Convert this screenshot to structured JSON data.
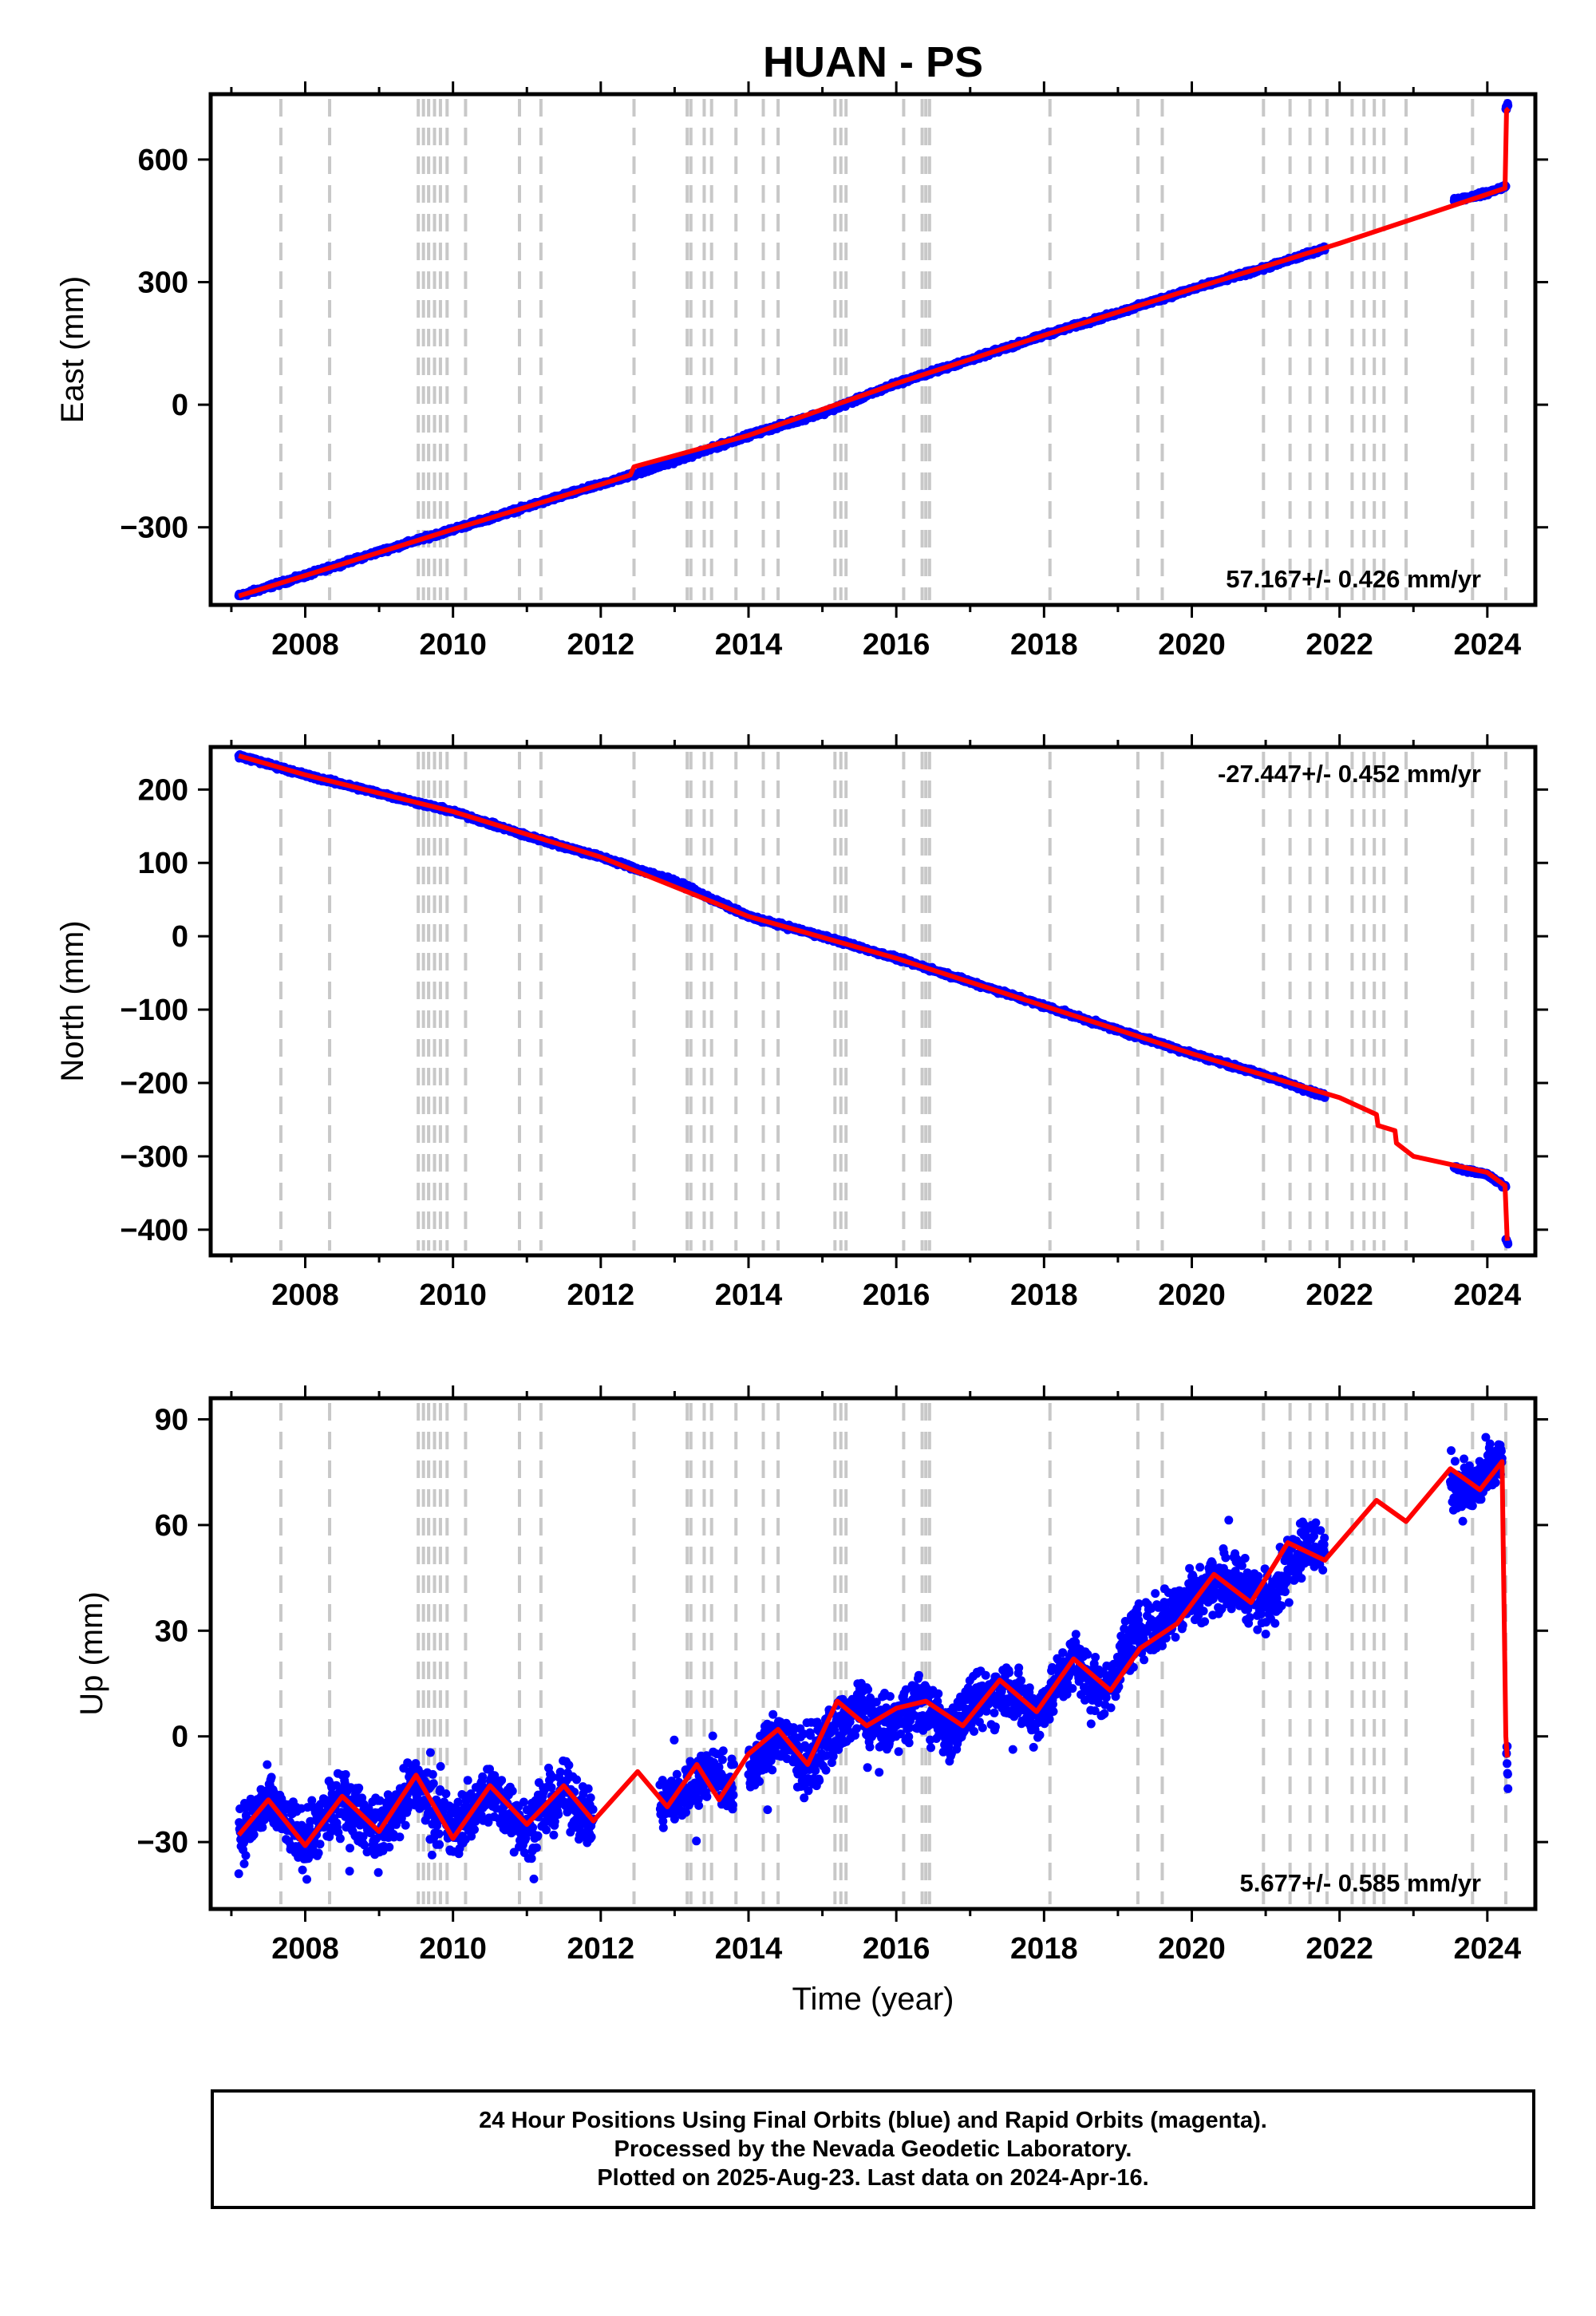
{
  "chart_data": [
    {
      "type": "scatter",
      "title": "HUAN - PS",
      "ylabel": "East (mm)",
      "xlabel": "",
      "xlim": [
        2006.72,
        2024.65
      ],
      "ylim": [
        -490,
        760
      ],
      "xticks": [
        2008,
        2010,
        2012,
        2014,
        2016,
        2018,
        2020,
        2022,
        2024
      ],
      "yticks": [
        -300,
        0,
        300,
        600
      ],
      "grid": false,
      "rate_label": "57.167+/- 0.426 mm/yr",
      "rate_label_position": "bottom-right",
      "series": [
        {
          "color": "#0000ff",
          "marker": "dot",
          "segments": [
            {
              "x": [
                2007.1,
                2008.0,
                2009.0,
                2010.0,
                2011.0,
                2011.5,
                2012.0,
                2012.6,
                2013.5,
                2014.0,
                2015.0,
                2015.3,
                2016.0,
                2017.0,
                2018.0,
                2019.0,
                2020.0,
                2021.0,
                2021.8
              ],
              "y": [
                -468,
                -418,
                -360,
                -305,
                -250,
                -222,
                -195,
                -162,
                -107,
                -75,
                -20,
                0,
                52,
                110,
                170,
                225,
                283,
                335,
                383
              ]
            },
            {
              "x": [
                2023.55,
                2024.0,
                2024.25
              ],
              "y": [
                500,
                518,
                535
              ]
            },
            {
              "x": [
                2024.25,
                2024.28
              ],
              "y": [
                725,
                735
              ]
            }
          ]
        },
        {
          "color": "#ff0000",
          "line": true,
          "x": [
            2007.1,
            2008.0,
            2010.0,
            2012.0,
            2012.4,
            2012.45,
            2014.0,
            2016.0,
            2018.0,
            2020.0,
            2022.0,
            2023.0,
            2024.0,
            2024.24,
            2024.26,
            2024.29
          ],
          "y": [
            -468,
            -418,
            -305,
            -195,
            -172,
            -152,
            -75,
            52,
            170,
            283,
            395,
            455,
            515,
            530,
            720,
            725
          ]
        }
      ],
      "event_lines": [
        2007.67,
        2008.33,
        2009.53,
        2009.6,
        2009.67,
        2009.75,
        2009.83,
        2009.92,
        2010.17,
        2010.9,
        2011.19,
        2012.45,
        2013.17,
        2013.22,
        2013.4,
        2013.5,
        2013.83,
        2014.2,
        2014.4,
        2015.17,
        2015.25,
        2015.32,
        2016.1,
        2016.35,
        2016.4,
        2016.45,
        2018.08,
        2019.27,
        2019.6,
        2020.97,
        2021.33,
        2021.6,
        2021.83,
        2022.17,
        2022.33,
        2022.47,
        2022.6,
        2022.9,
        2023.8,
        2024.25
      ]
    },
    {
      "type": "scatter",
      "title": "",
      "ylabel": "North (mm)",
      "xlabel": "",
      "xlim": [
        2006.72,
        2024.65
      ],
      "ylim": [
        -435,
        258
      ],
      "xticks": [
        2008,
        2010,
        2012,
        2014,
        2016,
        2018,
        2020,
        2022,
        2024
      ],
      "yticks": [
        -400,
        -300,
        -200,
        -100,
        0,
        100,
        200
      ],
      "grid": false,
      "rate_label": "-27.447+/- 0.452 mm/yr",
      "rate_label_position": "top-right",
      "series": [
        {
          "color": "#0000ff",
          "marker": "dot",
          "segments": [
            {
              "x": [
                2007.1,
                2008.0,
                2009.0,
                2010.0,
                2011.0,
                2012.0,
                2013.0,
                2014.0,
                2015.0,
                2016.0,
                2017.0,
                2018.0,
                2019.0,
                2020.0,
                2021.0,
                2021.8
              ],
              "y": [
                246,
                220,
                195,
                170,
                137,
                108,
                75,
                27,
                0,
                -30,
                -62,
                -95,
                -128,
                -160,
                -190,
                -218
              ]
            },
            {
              "x": [
                2023.55,
                2024.0,
                2024.25
              ],
              "y": [
                -315,
                -325,
                -342
              ]
            },
            {
              "x": [
                2024.25,
                2024.28
              ],
              "y": [
                -412,
                -418
              ]
            }
          ]
        },
        {
          "color": "#ff0000",
          "line": true,
          "x": [
            2007.1,
            2008.0,
            2010.0,
            2012.0,
            2014.0,
            2016.0,
            2018.0,
            2020.0,
            2022.0,
            2022.5,
            2022.52,
            2022.75,
            2022.77,
            2023.0,
            2024.0,
            2024.24,
            2024.27
          ],
          "y": [
            246,
            220,
            170,
            108,
            27,
            -30,
            -95,
            -160,
            -220,
            -243,
            -258,
            -265,
            -282,
            -300,
            -322,
            -340,
            -415
          ]
        }
      ],
      "event_lines": [
        2007.67,
        2008.33,
        2009.53,
        2009.6,
        2009.67,
        2009.75,
        2009.83,
        2009.92,
        2010.17,
        2010.9,
        2011.19,
        2012.45,
        2013.17,
        2013.22,
        2013.4,
        2013.5,
        2013.83,
        2014.2,
        2014.4,
        2015.17,
        2015.25,
        2015.32,
        2016.1,
        2016.35,
        2016.4,
        2016.45,
        2018.08,
        2019.27,
        2019.6,
        2020.97,
        2021.33,
        2021.6,
        2021.83,
        2022.17,
        2022.33,
        2022.47,
        2022.6,
        2022.9,
        2023.8,
        2024.25
      ]
    },
    {
      "type": "scatter",
      "title": "",
      "ylabel": "Up (mm)",
      "xlabel": "Time (year)",
      "xlim": [
        2006.72,
        2024.65
      ],
      "ylim": [
        -49,
        96
      ],
      "xticks": [
        2008,
        2010,
        2012,
        2014,
        2016,
        2018,
        2020,
        2022,
        2024
      ],
      "yticks": [
        -30,
        0,
        30,
        60,
        90
      ],
      "grid": false,
      "rate_label": "5.677+/- 0.585 mm/yr",
      "rate_label_position": "bottom-right",
      "series": [
        {
          "color": "#0000ff",
          "marker": "dot",
          "scatter_amplitude": 8,
          "segments": [
            {
              "x": [
                2007.1,
                2007.5,
                2008.0,
                2008.5,
                2009.0,
                2009.5,
                2010.0,
                2010.5,
                2011.0,
                2011.5,
                2011.9
              ],
              "y": [
                -28,
                -19,
                -30,
                -19,
                -27,
                -14,
                -27,
                -15,
                -26,
                -16,
                -25
              ]
            },
            {
              "x": [
                2012.8,
                2013.2,
                2013.5,
                2013.8
              ],
              "y": [
                -20,
                -15,
                -9,
                -15
              ]
            },
            {
              "x": [
                2014.0,
                2014.4,
                2014.8,
                2015.1,
                2015.5,
                2015.9,
                2016.3,
                2016.7,
                2017.0,
                2017.5,
                2017.9,
                2018.4,
                2018.8,
                2019.2,
                2019.6,
                2020.0,
                2020.5,
                2021.0,
                2021.5,
                2021.8
              ],
              "y": [
                -10,
                0,
                -8,
                0,
                8,
                2,
                10,
                1,
                8,
                14,
                6,
                22,
                12,
                28,
                33,
                40,
                45,
                38,
                55,
                53
              ]
            },
            {
              "x": [
                2023.5,
                2023.8,
                2024.0,
                2024.2
              ],
              "y": [
                72,
                70,
                74,
                78
              ]
            },
            {
              "x": [
                2024.26,
                2024.28
              ],
              "y": [
                -5,
                -10
              ]
            }
          ]
        },
        {
          "color": "#ff0000",
          "line": true,
          "x": [
            2007.1,
            2007.5,
            2008.0,
            2008.5,
            2009.0,
            2009.5,
            2010.0,
            2010.5,
            2011.0,
            2011.5,
            2011.9,
            2012.5,
            2012.9,
            2013.3,
            2013.6,
            2014.0,
            2014.4,
            2014.8,
            2015.2,
            2015.6,
            2016.0,
            2016.4,
            2016.9,
            2017.4,
            2017.9,
            2018.4,
            2018.9,
            2019.3,
            2019.8,
            2020.3,
            2020.8,
            2021.3,
            2021.8,
            2022.5,
            2022.9,
            2023.5,
            2023.9,
            2024.2,
            2024.25,
            2024.27
          ],
          "y": [
            -28,
            -18,
            -31,
            -17,
            -27,
            -11,
            -29,
            -14,
            -25,
            -14,
            -24,
            -10,
            -20,
            -8,
            -18,
            -5,
            2,
            -8,
            10,
            3,
            8,
            10,
            3,
            16,
            7,
            22,
            13,
            25,
            32,
            46,
            38,
            55,
            50,
            67,
            61,
            76,
            70,
            78,
            0,
            -6
          ]
        }
      ],
      "event_lines": [
        2007.67,
        2008.33,
        2009.53,
        2009.6,
        2009.67,
        2009.75,
        2009.83,
        2009.92,
        2010.17,
        2010.9,
        2011.19,
        2012.45,
        2013.17,
        2013.22,
        2013.4,
        2013.5,
        2013.83,
        2014.2,
        2014.4,
        2015.17,
        2015.25,
        2015.32,
        2016.1,
        2016.35,
        2016.4,
        2016.45,
        2018.08,
        2019.27,
        2019.6,
        2020.97,
        2021.33,
        2021.6,
        2021.83,
        2022.17,
        2022.33,
        2022.47,
        2022.6,
        2022.9,
        2023.8,
        2024.25
      ]
    }
  ],
  "footer": {
    "line1": "24 Hour Positions Using Final Orbits (blue) and Rapid Orbits (magenta).",
    "line2": "Processed by the Nevada Geodetic Laboratory.",
    "line3": "Plotted on 2025-Aug-23. Last data on 2024-Apr-16."
  }
}
